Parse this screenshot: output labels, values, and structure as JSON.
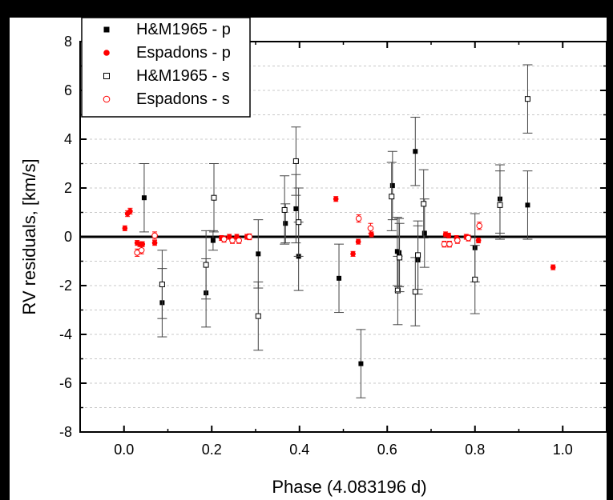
{
  "chart_data": {
    "type": "scatter",
    "xlabel": "Phase (4.083196 d)",
    "ylabel": "RV residuals, [km/s]",
    "xlim": [
      -0.1,
      1.1
    ],
    "ylim": [
      -8,
      8
    ],
    "x_ticks": [
      "0.0",
      "0.2",
      "0.4",
      "0.6",
      "0.8",
      "1.0"
    ],
    "y_ticks": [
      "-8",
      "-6",
      "-4",
      "-2",
      "0",
      "2",
      "4",
      "6",
      "8"
    ],
    "grid": "dashed horizontal",
    "legend_position": "top-left",
    "zero_line": 0,
    "series": [
      {
        "name": "H&M1965 - p",
        "marker": "filled-square",
        "color": "#000000",
        "points": [
          {
            "x": 0.046,
            "y": 1.6,
            "err": 1.4
          },
          {
            "x": 0.087,
            "y": -2.7,
            "err": 1.4
          },
          {
            "x": 0.187,
            "y": -2.3,
            "err": 1.4
          },
          {
            "x": 0.203,
            "y": -0.15,
            "err": 0.4
          },
          {
            "x": 0.306,
            "y": -0.7,
            "err": 1.4
          },
          {
            "x": 0.368,
            "y": 0.55,
            "err": 0.8
          },
          {
            "x": 0.392,
            "y": 1.15,
            "err": 1.4
          },
          {
            "x": 0.398,
            "y": -0.8,
            "err": 1.4
          },
          {
            "x": 0.49,
            "y": -1.7,
            "err": 1.4
          },
          {
            "x": 0.54,
            "y": -5.2,
            "err": 1.4
          },
          {
            "x": 0.612,
            "y": 2.1,
            "err": 1.4
          },
          {
            "x": 0.623,
            "y": -0.6,
            "err": 1.4
          },
          {
            "x": 0.627,
            "y": -0.65,
            "err": 1.4
          },
          {
            "x": 0.664,
            "y": 3.5,
            "err": 1.4
          },
          {
            "x": 0.67,
            "y": -0.95,
            "err": 1.4
          },
          {
            "x": 0.685,
            "y": 0.15,
            "err": 1.4
          },
          {
            "x": 0.8,
            "y": -0.45,
            "err": 1.4
          },
          {
            "x": 0.857,
            "y": 1.55,
            "err": 1.4
          },
          {
            "x": 0.92,
            "y": 1.3,
            "err": 1.4
          }
        ]
      },
      {
        "name": "Espadons - p",
        "marker": "filled-circle",
        "color": "#ff0000",
        "points": [
          {
            "x": 0.002,
            "y": 0.35,
            "err": 0.1
          },
          {
            "x": 0.008,
            "y": 0.95,
            "err": 0.12
          },
          {
            "x": 0.014,
            "y": 1.05,
            "err": 0.12
          },
          {
            "x": 0.03,
            "y": -0.25,
            "err": 0.1
          },
          {
            "x": 0.036,
            "y": -0.3,
            "err": 0.1
          },
          {
            "x": 0.042,
            "y": -0.3,
            "err": 0.1
          },
          {
            "x": 0.07,
            "y": -0.25,
            "err": 0.1
          },
          {
            "x": 0.222,
            "y": -0.05,
            "err": 0.1
          },
          {
            "x": 0.24,
            "y": 0.0,
            "err": 0.1
          },
          {
            "x": 0.257,
            "y": 0.0,
            "err": 0.1
          },
          {
            "x": 0.28,
            "y": 0.0,
            "err": 0.1
          },
          {
            "x": 0.483,
            "y": 1.55,
            "err": 0.1
          },
          {
            "x": 0.522,
            "y": -0.7,
            "err": 0.1
          },
          {
            "x": 0.534,
            "y": -0.2,
            "err": 0.1
          },
          {
            "x": 0.564,
            "y": 0.1,
            "err": 0.1
          },
          {
            "x": 0.733,
            "y": 0.1,
            "err": 0.1
          },
          {
            "x": 0.74,
            "y": 0.05,
            "err": 0.1
          },
          {
            "x": 0.758,
            "y": -0.05,
            "err": 0.1
          },
          {
            "x": 0.78,
            "y": 0.0,
            "err": 0.1
          },
          {
            "x": 0.808,
            "y": -0.15,
            "err": 0.1
          },
          {
            "x": 0.978,
            "y": -1.25,
            "err": 0.1
          }
        ]
      },
      {
        "name": "H&M1965 - s",
        "marker": "open-square",
        "color": "#000000",
        "points": [
          {
            "x": 0.087,
            "y": -1.95,
            "err": 1.4
          },
          {
            "x": 0.187,
            "y": -1.15,
            "err": 1.4
          },
          {
            "x": 0.205,
            "y": 1.6,
            "err": 1.4
          },
          {
            "x": 0.306,
            "y": -3.25,
            "err": 1.4
          },
          {
            "x": 0.366,
            "y": 1.1,
            "err": 1.4
          },
          {
            "x": 0.392,
            "y": 3.1,
            "err": 1.4
          },
          {
            "x": 0.398,
            "y": 0.6,
            "err": 1.4
          },
          {
            "x": 0.61,
            "y": 1.65,
            "err": 1.4
          },
          {
            "x": 0.624,
            "y": -2.2,
            "err": 1.4
          },
          {
            "x": 0.628,
            "y": -0.85,
            "err": 1.4
          },
          {
            "x": 0.664,
            "y": -2.25,
            "err": 1.4
          },
          {
            "x": 0.67,
            "y": -0.75,
            "err": 1.4
          },
          {
            "x": 0.683,
            "y": 1.35,
            "err": 1.4
          },
          {
            "x": 0.8,
            "y": -1.75,
            "err": 1.4
          },
          {
            "x": 0.857,
            "y": 1.3,
            "err": 1.4
          },
          {
            "x": 0.92,
            "y": 5.65,
            "err": 1.4
          }
        ]
      },
      {
        "name": "Espadons - s",
        "marker": "open-circle",
        "color": "#ff0000",
        "points": [
          {
            "x": 0.03,
            "y": -0.65,
            "err": 0.15
          },
          {
            "x": 0.04,
            "y": -0.55,
            "err": 0.15
          },
          {
            "x": 0.07,
            "y": 0.05,
            "err": 0.15
          },
          {
            "x": 0.228,
            "y": -0.1,
            "err": 0.12
          },
          {
            "x": 0.247,
            "y": -0.15,
            "err": 0.12
          },
          {
            "x": 0.262,
            "y": -0.15,
            "err": 0.12
          },
          {
            "x": 0.286,
            "y": 0.0,
            "err": 0.12
          },
          {
            "x": 0.535,
            "y": 0.75,
            "err": 0.15
          },
          {
            "x": 0.562,
            "y": 0.35,
            "err": 0.2
          },
          {
            "x": 0.73,
            "y": -0.3,
            "err": 0.12
          },
          {
            "x": 0.742,
            "y": -0.3,
            "err": 0.12
          },
          {
            "x": 0.76,
            "y": -0.15,
            "err": 0.12
          },
          {
            "x": 0.785,
            "y": -0.05,
            "err": 0.12
          },
          {
            "x": 0.81,
            "y": 0.45,
            "err": 0.15
          }
        ]
      }
    ]
  }
}
